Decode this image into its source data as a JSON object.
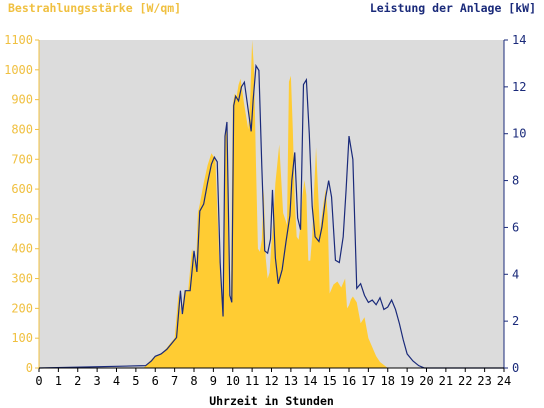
{
  "chart_data": {
    "type": "area",
    "title": "",
    "xlabel": "Uhrzeit in Stunden",
    "ylabel_left": "Bestrahlungsstärke [W/qm]",
    "ylabel_right": "Leistung der Anlage [kW]",
    "xlim": [
      0,
      24
    ],
    "ylim_left": [
      0,
      1100
    ],
    "ylim_right": [
      0,
      14
    ],
    "x_ticks": [
      "0",
      "1",
      "2",
      "3",
      "4",
      "5",
      "6",
      "7",
      "8",
      "9",
      "10",
      "11",
      "12",
      "13",
      "14",
      "15",
      "16",
      "17",
      "18",
      "19",
      "20",
      "21",
      "22",
      "23",
      "24"
    ],
    "y_left_ticks": [
      "0",
      "100",
      "200",
      "300",
      "400",
      "500",
      "600",
      "700",
      "800",
      "900",
      "1000",
      "1100"
    ],
    "y_right_ticks": [
      "0",
      "2",
      "4",
      "6",
      "8",
      "10",
      "12",
      "14"
    ],
    "grid": false,
    "colors": {
      "plot_background": "#dcdcdc",
      "irradiance_fill": "#ffcc33",
      "power_line": "#1a2a7a",
      "left_axis_text": "#f0c040",
      "right_axis_text": "#1a2a7a",
      "tick_text": "#000000"
    },
    "series": [
      {
        "name": "Bestrahlungsstärke [W/qm]",
        "axis": "left",
        "style": "filled-area",
        "x": [
          0,
          5.4,
          5.6,
          5.9,
          6.2,
          6.5,
          6.8,
          7.0,
          7.2,
          7.35,
          7.5,
          7.7,
          7.9,
          8.1,
          8.2,
          8.3,
          8.5,
          8.7,
          8.9,
          9.1,
          9.3,
          9.5,
          9.6,
          9.7,
          9.8,
          9.9,
          10.0,
          10.1,
          10.2,
          10.3,
          10.4,
          10.6,
          10.8,
          10.9,
          11.0,
          11.1,
          11.2,
          11.3,
          11.4,
          11.5,
          11.6,
          11.7,
          11.8,
          11.9,
          12.0,
          12.1,
          12.2,
          12.4,
          12.6,
          12.8,
          12.9,
          13.0,
          13.1,
          13.2,
          13.3,
          13.4,
          13.5,
          13.6,
          13.7,
          13.8,
          13.9,
          14.0,
          14.1,
          14.2,
          14.3,
          14.5,
          14.7,
          14.8,
          14.9,
          15.0,
          15.2,
          15.4,
          15.6,
          15.8,
          15.9,
          16.0,
          16.1,
          16.2,
          16.4,
          16.6,
          16.8,
          17.0,
          17.2,
          17.4,
          17.6,
          17.8,
          18.0,
          18.2,
          18.4,
          18.6,
          18.8,
          19.0,
          19.3,
          19.6,
          19.9,
          20.0,
          20.1,
          24
        ],
        "values": [
          0,
          0,
          15,
          35,
          45,
          60,
          85,
          100,
          250,
          180,
          260,
          260,
          400,
          330,
          520,
          550,
          620,
          680,
          720,
          700,
          370,
          180,
          780,
          830,
          250,
          220,
          880,
          920,
          910,
          950,
          970,
          880,
          800,
          900,
          1100,
          1000,
          680,
          400,
          390,
          430,
          600,
          370,
          300,
          320,
          420,
          500,
          620,
          750,
          520,
          480,
          960,
          980,
          800,
          560,
          440,
          430,
          480,
          580,
          630,
          580,
          360,
          360,
          440,
          600,
          740,
          460,
          560,
          600,
          510,
          250,
          280,
          290,
          270,
          300,
          200,
          210,
          230,
          240,
          220,
          150,
          170,
          100,
          70,
          40,
          20,
          10,
          0,
          0,
          0,
          0,
          0,
          0,
          0,
          0,
          0,
          0,
          0,
          0
        ]
      },
      {
        "name": "Leistung der Anlage [kW]",
        "axis": "right",
        "style": "line",
        "x": [
          0,
          5.5,
          5.8,
          6.0,
          6.3,
          6.6,
          6.9,
          7.1,
          7.3,
          7.4,
          7.55,
          7.8,
          8.0,
          8.15,
          8.3,
          8.5,
          8.7,
          8.9,
          9.05,
          9.2,
          9.35,
          9.5,
          9.6,
          9.7,
          9.85,
          9.95,
          10.05,
          10.15,
          10.3,
          10.45,
          10.6,
          10.8,
          10.95,
          11.05,
          11.2,
          11.35,
          11.5,
          11.65,
          11.8,
          11.95,
          12.05,
          12.2,
          12.35,
          12.55,
          12.75,
          12.95,
          13.05,
          13.2,
          13.35,
          13.5,
          13.65,
          13.8,
          13.95,
          14.1,
          14.25,
          14.45,
          14.6,
          14.8,
          14.95,
          15.1,
          15.3,
          15.5,
          15.7,
          15.85,
          16.0,
          16.2,
          16.4,
          16.6,
          16.8,
          17.0,
          17.2,
          17.4,
          17.6,
          17.8,
          18.0,
          18.2,
          18.4,
          18.6,
          18.8,
          19.0,
          19.3,
          19.6,
          19.9,
          20.0,
          24
        ],
        "values": [
          0,
          0.1,
          0.3,
          0.5,
          0.6,
          0.8,
          1.1,
          1.3,
          3.3,
          2.3,
          3.3,
          3.3,
          5.0,
          4.1,
          6.7,
          7.0,
          7.9,
          8.7,
          9.0,
          8.8,
          4.5,
          2.2,
          9.9,
          10.5,
          3.1,
          2.8,
          11.2,
          11.6,
          11.4,
          12.0,
          12.2,
          11.0,
          10.1,
          11.4,
          12.9,
          12.7,
          8.6,
          5.0,
          4.9,
          5.5,
          7.6,
          4.7,
          3.6,
          4.2,
          5.4,
          6.5,
          8.0,
          9.2,
          6.4,
          5.9,
          12.1,
          12.3,
          10.0,
          6.9,
          5.6,
          5.4,
          6.0,
          7.3,
          8.0,
          7.3,
          4.6,
          4.5,
          5.6,
          7.6,
          9.9,
          8.9,
          3.4,
          3.6,
          3.1,
          2.8,
          2.9,
          2.7,
          3.0,
          2.5,
          2.6,
          2.9,
          2.5,
          1.9,
          1.2,
          0.6,
          0.3,
          0.1,
          0.0,
          0,
          0
        ]
      }
    ]
  }
}
